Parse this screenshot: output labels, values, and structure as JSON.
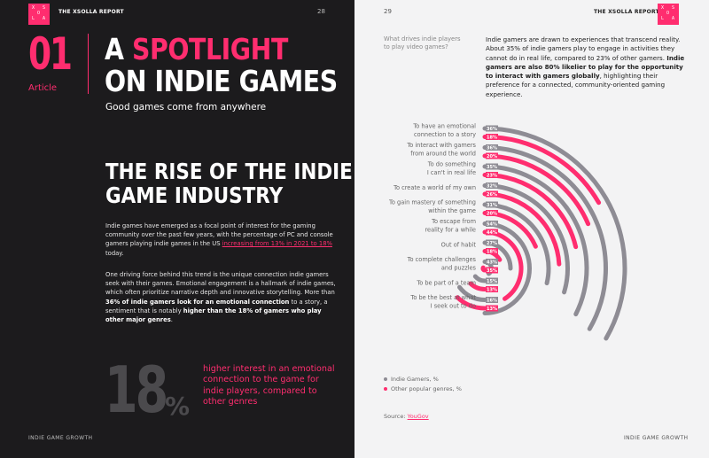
{
  "header": {
    "left_report": "THE XSOLLA REPORT",
    "left_page": "28",
    "right_page": "29",
    "right_report": "THE XSOLLA REPORT",
    "logo_letters": [
      "X",
      "S",
      "O",
      "L",
      "A"
    ]
  },
  "article": {
    "number": "01",
    "label": "Article",
    "title_line1_a": "A ",
    "title_line1_b": "SPOTLIGHT",
    "title_line2": "ON INDIE GAMES",
    "subtitle": "Good games come from anywhere"
  },
  "section": {
    "title_line1": "THE RISE OF THE INDIE",
    "title_line2": "GAME INDUSTRY"
  },
  "para1": {
    "text_a": "Indie games have emerged as a focal point of interest for the gaming community over the past few years, with the percentage of PC and console gamers playing indie games in the US ",
    "link": "increasing from 13% in 2021 to 18%",
    "text_b": " today."
  },
  "para2": {
    "text_a": "One driving force behind this trend is the unique connection indie gamers seek with their games. Emotional engagement is a hallmark of indie games, which often prioritize narrative depth and innovative storytelling. More than ",
    "bold_a": "36% of indie gamers look for an emotional connection",
    "text_b": " to a story, a sentiment that is notably ",
    "bold_b": "higher than the 18% of gamers who play other major genres",
    "text_c": "."
  },
  "stat": {
    "value": "18",
    "unit": "%",
    "text": "higher interest in an emotional connection to the game for indie players, compared to other genres"
  },
  "footer": {
    "left": "INDIE GAME GROWTH",
    "right": "INDIE GAME GROWTH"
  },
  "question": "What drives indie players to play video games?",
  "intro": {
    "text_a": "Indie gamers are drawn to experiences that transcend reality. About 35% of indie gamers play to engage in activities they cannot do in real life, compared to 23% of other gamers. ",
    "bold": "Indie gamers are also 80% likelier to play for the opportunity to interact with gamers globally",
    "text_b": ", highlighting their preference for a connected, community-oriented gaming experience."
  },
  "legend": {
    "indie": "Indie Gamers, %",
    "other": "Other popular genres, %"
  },
  "source": {
    "label": "Source: ",
    "link": "YouGov"
  },
  "colors": {
    "accent": "#ff2d6f",
    "indie_series": "#8e8c94",
    "other_series": "#ff2d6f",
    "dark_bg": "#1c1b1d"
  },
  "chart_data": {
    "type": "bar",
    "orientation": "radial",
    "categories": [
      "To have an emotional connection to a story",
      "To interact with gamers from around the world",
      "To do something I can't in real life",
      "To create a world of my own",
      "To gain mastery of something within the game",
      "To escape from reality for a while",
      "Out of habit",
      "To complete challenges and puzzles",
      "To be part of a team",
      "To be the best at what I seek out to do"
    ],
    "category_lines": [
      [
        "To have an emotional",
        "connection to a story"
      ],
      [
        "To interact with gamers",
        "from around the world"
      ],
      [
        "To do something",
        "I can't in real life"
      ],
      [
        "To create a world of my own"
      ],
      [
        "To gain mastery of something",
        "within the game"
      ],
      [
        "To escape from",
        "reality for a while"
      ],
      [
        "Out of habit"
      ],
      [
        "To complete challenges",
        "and puzzles"
      ],
      [
        "To be part of a team"
      ],
      [
        "To be the best at what",
        "I seek out to do"
      ]
    ],
    "series": [
      {
        "name": "Indie Gamers, %",
        "values": [
          36,
          36,
          35,
          32,
          31,
          54,
          27,
          43,
          15,
          16
        ],
        "labels": [
          "36%",
          "36%",
          "35%",
          "32%",
          "31%",
          "54%",
          "27%",
          "43%",
          "15%",
          "16%"
        ]
      },
      {
        "name": "Other popular genres, %",
        "values": [
          18,
          20,
          23,
          26,
          20,
          44,
          18,
          35,
          13,
          13
        ],
        "labels": [
          "18%",
          "20%",
          "23%",
          "26%",
          "20%",
          "44%",
          "18%",
          "35%",
          "13%",
          "13%"
        ]
      }
    ],
    "max_sweep_value": 54,
    "legend_position": "bottom-left"
  }
}
